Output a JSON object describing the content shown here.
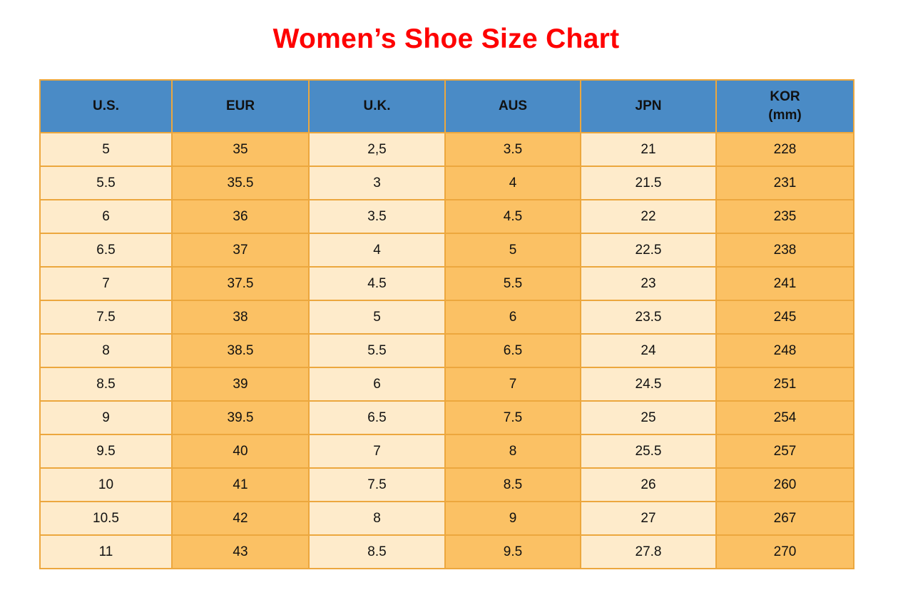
{
  "page": {
    "title": "Women’s Shoe Size Chart"
  },
  "colors": {
    "title_red": "#fe0000",
    "header_blue": "#4a8bc6",
    "cream": "#feebcb",
    "orange": "#fbc164",
    "border_gold": "#eca73e",
    "text_black": "#111111"
  },
  "table": {
    "headers": [
      {
        "key": "us",
        "label": "U.S."
      },
      {
        "key": "eur",
        "label": "EUR"
      },
      {
        "key": "uk",
        "label": "U.K."
      },
      {
        "key": "aus",
        "label": "AUS"
      },
      {
        "key": "jpn",
        "label": "JPN"
      },
      {
        "key": "kor",
        "label": "KOR",
        "sublabel": "(mm)"
      }
    ]
  },
  "chart_data": {
    "type": "table",
    "title": "Women’s Shoe Size Chart",
    "columns": [
      "U.S.",
      "EUR",
      "U.K.",
      "AUS",
      "JPN",
      "KOR (mm)"
    ],
    "rows": [
      [
        "5",
        "35",
        "2,5",
        "3.5",
        "21",
        "228"
      ],
      [
        "5.5",
        "35.5",
        "3",
        "4",
        "21.5",
        "231"
      ],
      [
        "6",
        "36",
        "3.5",
        "4.5",
        "22",
        "235"
      ],
      [
        "6.5",
        "37",
        "4",
        "5",
        "22.5",
        "238"
      ],
      [
        "7",
        "37.5",
        "4.5",
        "5.5",
        "23",
        "241"
      ],
      [
        "7.5",
        "38",
        "5",
        "6",
        "23.5",
        "245"
      ],
      [
        "8",
        "38.5",
        "5.5",
        "6.5",
        "24",
        "248"
      ],
      [
        "8.5",
        "39",
        "6",
        "7",
        "24.5",
        "251"
      ],
      [
        "9",
        "39.5",
        "6.5",
        "7.5",
        "25",
        "254"
      ],
      [
        "9.5",
        "40",
        "7",
        "8",
        "25.5",
        "257"
      ],
      [
        "10",
        "41",
        "7.5",
        "8.5",
        "26",
        "260"
      ],
      [
        "10.5",
        "42",
        "8",
        "9",
        "27",
        "267"
      ],
      [
        "11",
        "43",
        "8.5",
        "9.5",
        "27.8",
        "270"
      ]
    ]
  }
}
